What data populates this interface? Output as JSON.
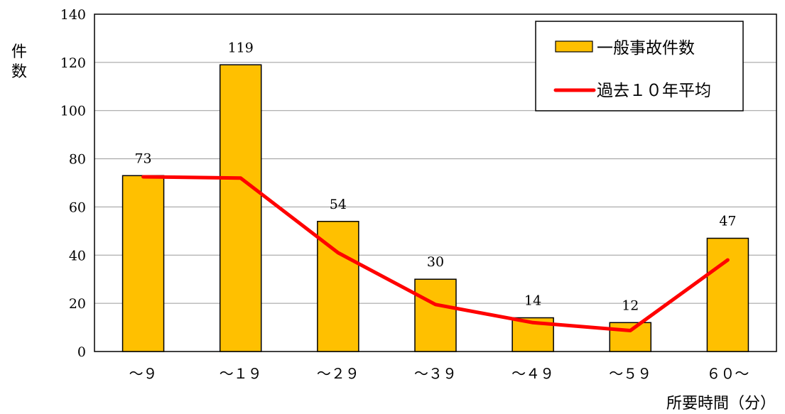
{
  "chart_data": {
    "type": "bar",
    "xlabel": "所要時間（分）",
    "ylabel": "件数",
    "ylim": [
      0,
      140
    ],
    "yticks": [
      0,
      20,
      40,
      60,
      80,
      100,
      120,
      140
    ],
    "grid": true,
    "legend_position": "top-right",
    "categories": [
      "～９",
      "～１９",
      "～２９",
      "～３９",
      "～４９",
      "～５９",
      "６０～"
    ],
    "series": [
      {
        "name": "一般事故件数",
        "type": "bar",
        "color": "#FFC000",
        "values": [
          73,
          119,
          54,
          30,
          14,
          12,
          47
        ],
        "data_labels": [
          "73",
          "119",
          "54",
          "30",
          "14",
          "12",
          "47"
        ]
      },
      {
        "name": "過去１０年平均",
        "type": "line",
        "color": "#FF0000",
        "values": [
          72.5,
          72,
          41,
          19.5,
          12,
          8.7,
          38
        ]
      }
    ]
  }
}
